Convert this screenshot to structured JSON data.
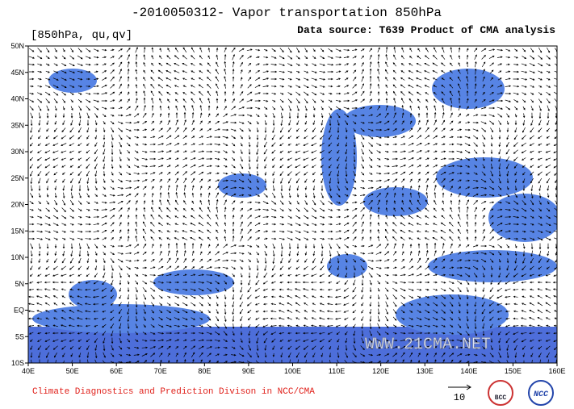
{
  "header": {
    "title": "-2010050312- Vapor transportation 850hPa",
    "subtitle": "[850hPa, qu,qv]",
    "source": "Data source: T639 Product of CMA analysis"
  },
  "map": {
    "lat_labels": [
      "50N",
      "45N",
      "40N",
      "35N",
      "30N",
      "25N",
      "20N",
      "15N",
      "10N",
      "5N",
      "EQ",
      "5S",
      "10S"
    ],
    "lon_labels": [
      "40E",
      "50E",
      "60E",
      "70E",
      "80E",
      "90E",
      "100E",
      "110E",
      "120E",
      "130E",
      "140E",
      "150E",
      "160E"
    ],
    "watermark": "WWW.21CMA.NET"
  },
  "footer": {
    "credit": "Climate Diagnostics and Prediction Divison in NCC/CMA",
    "reference_vector": "10",
    "logos": [
      "BCC",
      "NCC"
    ]
  }
}
